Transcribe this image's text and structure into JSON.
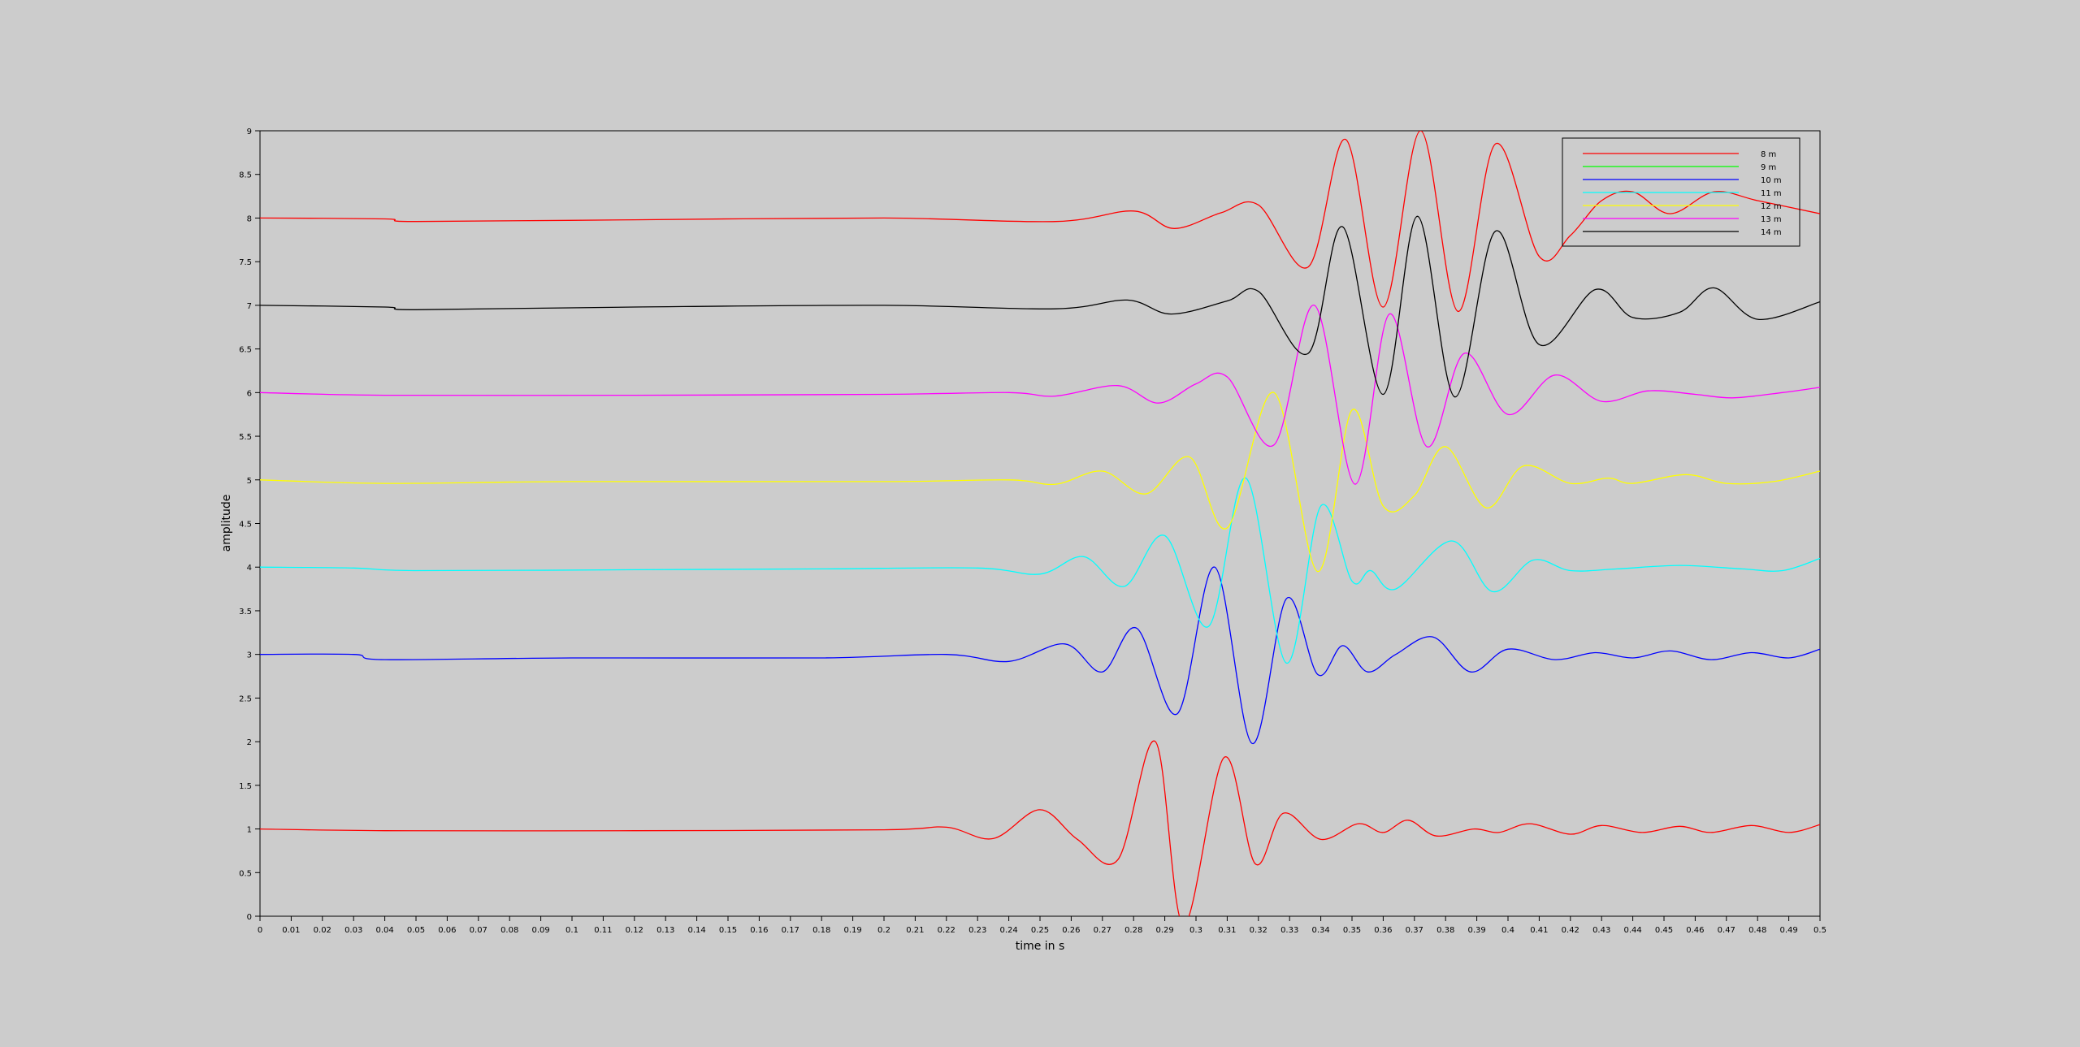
{
  "chart_data": {
    "type": "line",
    "title": "",
    "xlabel": "time in s",
    "ylabel": "amplitude",
    "xlim": [
      0,
      0.5
    ],
    "ylim": [
      0,
      9
    ],
    "xticks": [
      "0",
      "0.01",
      "0.02",
      "0.03",
      "0.04",
      "0.05",
      "0.06",
      "0.07",
      "0.08",
      "0.09",
      "0.1",
      "0.11",
      "0.12",
      "0.13",
      "0.14",
      "0.15",
      "0.16",
      "0.17",
      "0.18",
      "0.19",
      "0.2",
      "0.21",
      "0.22",
      "0.23",
      "0.24",
      "0.25",
      "0.26",
      "0.27",
      "0.28",
      "0.29",
      "0.3",
      "0.31",
      "0.32",
      "0.33",
      "0.34",
      "0.35",
      "0.36",
      "0.37",
      "0.38",
      "0.39",
      "0.4",
      "0.41",
      "0.42",
      "0.43",
      "0.44",
      "0.45",
      "0.46",
      "0.47",
      "0.48",
      "0.49",
      "0.5"
    ],
    "yticks": [
      "0",
      "0.5",
      "1",
      "1.5",
      "2",
      "2.5",
      "3",
      "3.5",
      "4",
      "4.5",
      "5",
      "5.5",
      "6",
      "6.5",
      "7",
      "7.5",
      "8",
      "8.5",
      "9"
    ],
    "grid": false,
    "legend_position": "top-right",
    "series": [
      {
        "name": "8 m",
        "color": "#ff0000",
        "points": [
          [
            0,
            1
          ],
          [
            0.04,
            0.98
          ],
          [
            0.12,
            0.98
          ],
          [
            0.2,
            0.99
          ],
          [
            0.22,
            1.02
          ],
          [
            0.235,
            0.89
          ],
          [
            0.25,
            1.22
          ],
          [
            0.262,
            0.88
          ],
          [
            0.275,
            0.65
          ],
          [
            0.287,
            2.0
          ],
          [
            0.296,
            -0.1
          ],
          [
            0.309,
            1.82
          ],
          [
            0.319,
            0.6
          ],
          [
            0.328,
            1.18
          ],
          [
            0.34,
            0.88
          ],
          [
            0.352,
            1.06
          ],
          [
            0.36,
            0.96
          ],
          [
            0.368,
            1.1
          ],
          [
            0.377,
            0.92
          ],
          [
            0.389,
            1.0
          ],
          [
            0.397,
            0.96
          ],
          [
            0.407,
            1.06
          ],
          [
            0.42,
            0.94
          ],
          [
            0.43,
            1.04
          ],
          [
            0.443,
            0.96
          ],
          [
            0.455,
            1.03
          ],
          [
            0.465,
            0.96
          ],
          [
            0.478,
            1.04
          ],
          [
            0.49,
            0.96
          ],
          [
            0.5,
            1.05
          ]
        ]
      },
      {
        "name": "10 m",
        "color": "#0000ff",
        "points": [
          [
            0,
            3
          ],
          [
            0.03,
            3.0
          ],
          [
            0.04,
            2.94
          ],
          [
            0.1,
            2.96
          ],
          [
            0.18,
            2.96
          ],
          [
            0.22,
            3.0
          ],
          [
            0.24,
            2.92
          ],
          [
            0.258,
            3.12
          ],
          [
            0.27,
            2.8
          ],
          [
            0.281,
            3.3
          ],
          [
            0.294,
            2.32
          ],
          [
            0.306,
            4.0
          ],
          [
            0.318,
            1.98
          ],
          [
            0.329,
            3.64
          ],
          [
            0.339,
            2.77
          ],
          [
            0.347,
            3.1
          ],
          [
            0.355,
            2.8
          ],
          [
            0.364,
            3.0
          ],
          [
            0.376,
            3.2
          ],
          [
            0.388,
            2.8
          ],
          [
            0.4,
            3.06
          ],
          [
            0.415,
            2.94
          ],
          [
            0.428,
            3.02
          ],
          [
            0.44,
            2.96
          ],
          [
            0.452,
            3.04
          ],
          [
            0.465,
            2.94
          ],
          [
            0.478,
            3.02
          ],
          [
            0.49,
            2.96
          ],
          [
            0.5,
            3.06
          ]
        ]
      },
      {
        "name": "11 m",
        "color": "#00ffff",
        "points": [
          [
            0,
            4
          ],
          [
            0.03,
            3.99
          ],
          [
            0.05,
            3.96
          ],
          [
            0.12,
            3.97
          ],
          [
            0.18,
            3.98
          ],
          [
            0.23,
            3.99
          ],
          [
            0.25,
            3.92
          ],
          [
            0.264,
            4.12
          ],
          [
            0.277,
            3.78
          ],
          [
            0.29,
            4.36
          ],
          [
            0.304,
            3.32
          ],
          [
            0.316,
            5.02
          ],
          [
            0.329,
            2.9
          ],
          [
            0.34,
            4.7
          ],
          [
            0.35,
            3.84
          ],
          [
            0.356,
            3.96
          ],
          [
            0.364,
            3.75
          ],
          [
            0.382,
            4.3
          ],
          [
            0.395,
            3.72
          ],
          [
            0.408,
            4.08
          ],
          [
            0.42,
            3.96
          ],
          [
            0.435,
            3.98
          ],
          [
            0.455,
            4.02
          ],
          [
            0.475,
            3.98
          ],
          [
            0.488,
            3.96
          ],
          [
            0.5,
            4.1
          ]
        ]
      },
      {
        "name": "12 m",
        "color": "#ffff00",
        "points": [
          [
            0,
            5
          ],
          [
            0.04,
            4.96
          ],
          [
            0.1,
            4.98
          ],
          [
            0.2,
            4.98
          ],
          [
            0.24,
            5.0
          ],
          [
            0.255,
            4.95
          ],
          [
            0.27,
            5.1
          ],
          [
            0.284,
            4.84
          ],
          [
            0.298,
            5.26
          ],
          [
            0.31,
            4.45
          ],
          [
            0.325,
            6.0
          ],
          [
            0.339,
            3.95
          ],
          [
            0.35,
            5.8
          ],
          [
            0.36,
            4.7
          ],
          [
            0.37,
            4.82
          ],
          [
            0.38,
            5.38
          ],
          [
            0.393,
            4.68
          ],
          [
            0.405,
            5.16
          ],
          [
            0.42,
            4.96
          ],
          [
            0.432,
            5.02
          ],
          [
            0.44,
            4.96
          ],
          [
            0.457,
            5.06
          ],
          [
            0.47,
            4.96
          ],
          [
            0.485,
            4.98
          ],
          [
            0.5,
            5.1
          ]
        ]
      },
      {
        "name": "13 m",
        "color": "#ff00ff",
        "points": [
          [
            0,
            6
          ],
          [
            0.04,
            5.97
          ],
          [
            0.12,
            5.97
          ],
          [
            0.2,
            5.98
          ],
          [
            0.24,
            6.0
          ],
          [
            0.255,
            5.96
          ],
          [
            0.275,
            6.08
          ],
          [
            0.288,
            5.88
          ],
          [
            0.3,
            6.1
          ],
          [
            0.31,
            6.18
          ],
          [
            0.325,
            5.4
          ],
          [
            0.338,
            7.0
          ],
          [
            0.351,
            4.95
          ],
          [
            0.362,
            6.9
          ],
          [
            0.374,
            5.38
          ],
          [
            0.386,
            6.45
          ],
          [
            0.4,
            5.75
          ],
          [
            0.415,
            6.2
          ],
          [
            0.43,
            5.9
          ],
          [
            0.445,
            6.02
          ],
          [
            0.46,
            5.98
          ],
          [
            0.472,
            5.94
          ],
          [
            0.488,
            6.0
          ],
          [
            0.5,
            6.06
          ]
        ]
      },
      {
        "name": "14 m",
        "color": "#000000",
        "points": [
          [
            0,
            7
          ],
          [
            0.04,
            6.98
          ],
          [
            0.05,
            6.95
          ],
          [
            0.12,
            6.98
          ],
          [
            0.2,
            7.0
          ],
          [
            0.255,
            6.96
          ],
          [
            0.278,
            7.06
          ],
          [
            0.292,
            6.9
          ],
          [
            0.31,
            7.05
          ],
          [
            0.32,
            7.16
          ],
          [
            0.336,
            6.45
          ],
          [
            0.347,
            7.9
          ],
          [
            0.36,
            5.98
          ],
          [
            0.371,
            8.02
          ],
          [
            0.383,
            5.95
          ],
          [
            0.396,
            7.85
          ],
          [
            0.41,
            6.55
          ],
          [
            0.428,
            7.18
          ],
          [
            0.44,
            6.86
          ],
          [
            0.455,
            6.92
          ],
          [
            0.466,
            7.2
          ],
          [
            0.48,
            6.84
          ],
          [
            0.5,
            7.04
          ]
        ]
      },
      {
        "name": "",
        "color": "#ff0000",
        "points": [
          [
            0,
            8
          ],
          [
            0.04,
            7.99
          ],
          [
            0.05,
            7.96
          ],
          [
            0.12,
            7.98
          ],
          [
            0.2,
            8.0
          ],
          [
            0.255,
            7.96
          ],
          [
            0.28,
            8.08
          ],
          [
            0.293,
            7.88
          ],
          [
            0.308,
            8.06
          ],
          [
            0.32,
            8.15
          ],
          [
            0.336,
            7.44
          ],
          [
            0.348,
            8.9
          ],
          [
            0.36,
            6.98
          ],
          [
            0.372,
            9.0
          ],
          [
            0.384,
            6.93
          ],
          [
            0.396,
            8.85
          ],
          [
            0.41,
            7.56
          ],
          [
            0.42,
            7.8
          ],
          [
            0.43,
            8.2
          ],
          [
            0.44,
            8.3
          ],
          [
            0.452,
            8.05
          ],
          [
            0.466,
            8.3
          ],
          [
            0.48,
            8.2
          ],
          [
            0.5,
            8.05
          ]
        ]
      }
    ],
    "legend": [
      {
        "label": "8 m",
        "color": "#ff0000"
      },
      {
        "label": "9 m",
        "color": "#00ff00"
      },
      {
        "label": "10 m",
        "color": "#0000ff"
      },
      {
        "label": "11 m",
        "color": "#00ffff"
      },
      {
        "label": "12 m",
        "color": "#ffff00"
      },
      {
        "label": "13 m",
        "color": "#ff00ff"
      },
      {
        "label": "14 m",
        "color": "#000000"
      }
    ]
  }
}
